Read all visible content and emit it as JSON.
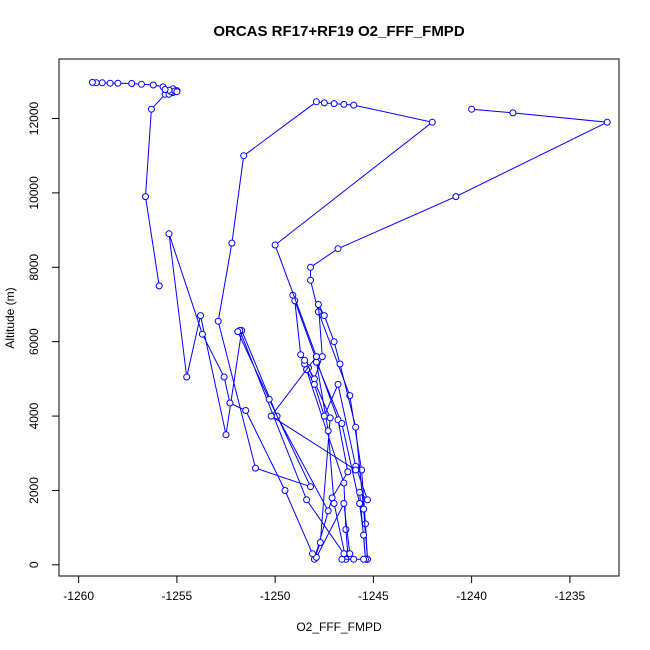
{
  "chart_data": {
    "type": "line",
    "title": "ORCAS RF17+RF19 O2_FFF_FMPD",
    "xlabel": "O2_FFF_FMPD",
    "ylabel": "Altitude (m)",
    "xlim": [
      -1261,
      -1232.5
    ],
    "ylim": [
      -300,
      13600
    ],
    "xticks": [
      -1260,
      -1255,
      -1250,
      -1245,
      -1240,
      -1235
    ],
    "yticks": [
      0,
      2000,
      4000,
      6000,
      8000,
      10000,
      12000
    ],
    "xtick_labels": [
      "-1260",
      "-1255",
      "-1250",
      "-1245",
      "-1240",
      "-1235"
    ],
    "ytick_labels": [
      "0",
      "2000",
      "4000",
      "6000",
      "8000",
      "10000",
      "12000"
    ],
    "series": [
      {
        "color": "#0000ff",
        "marker": "open-circle",
        "points": [
          [
            -1245.3,
            150
          ],
          [
            -1245.4,
            1100
          ],
          [
            -1245.6,
            2550
          ],
          [
            -1246.2,
            4550
          ],
          [
            -1247.8,
            6800
          ],
          [
            -1248.2,
            7650
          ],
          [
            -1248.2,
            8000
          ],
          [
            -1246.8,
            8500
          ],
          [
            -1240.8,
            9900
          ],
          [
            -1233.1,
            11900
          ],
          [
            -1237.9,
            12150
          ],
          [
            -1240.0,
            12250
          ]
        ]
      },
      {
        "color": "#0000ff",
        "marker": "open-circle",
        "points": [
          [
            -1245.3,
            150
          ],
          [
            -1245.5,
            1500
          ],
          [
            -1245.9,
            3700
          ],
          [
            -1246.7,
            5400
          ],
          [
            -1247.0,
            6000
          ],
          [
            -1247.5,
            6700
          ],
          [
            -1247.8,
            7000
          ],
          [
            -1247.6,
            5600
          ],
          [
            -1248.0,
            5000
          ],
          [
            -1248.7,
            5650
          ],
          [
            -1249.0,
            7100
          ],
          [
            -1249.1,
            7250
          ],
          [
            -1246.8,
            3900
          ],
          [
            -1246.3,
            2500
          ],
          [
            -1247.1,
            1800
          ],
          [
            -1248.0,
            150
          ],
          [
            -1247.7,
            600
          ],
          [
            -1247.2,
            3950
          ],
          [
            -1248.3,
            5300
          ],
          [
            -1248.5,
            5400
          ],
          [
            -1246.5,
            2200
          ],
          [
            -1246.4,
            950
          ],
          [
            -1246.3,
            300
          ],
          [
            -1246.4,
            150
          ],
          [
            -1247.0,
            1650
          ],
          [
            -1247.3,
            3600
          ],
          [
            -1247.9,
            5450
          ],
          [
            -1246.6,
            3800
          ],
          [
            -1245.7,
            1650
          ],
          [
            -1245.5,
            800
          ],
          [
            -1245.4,
            150
          ],
          [
            -1245.7,
            1950
          ],
          [
            -1245.3,
            1750
          ],
          [
            -1245.9,
            2650
          ],
          [
            -1246.8,
            4850
          ],
          [
            -1247.5,
            4000
          ],
          [
            -1248.0,
            4850
          ],
          [
            -1248.4,
            5250
          ],
          [
            -1248.5,
            5500
          ]
        ]
      },
      {
        "color": "#0000ff",
        "marker": "open-circle",
        "points": [
          [
            -1245.5,
            150
          ],
          [
            -1246.0,
            150
          ],
          [
            -1246.6,
            150
          ],
          [
            -1246.2,
            300
          ],
          [
            -1246.5,
            1650
          ],
          [
            -1247.9,
            200
          ],
          [
            -1248.1,
            300
          ],
          [
            -1249.5,
            2000
          ],
          [
            -1251.5,
            4150
          ],
          [
            -1252.3,
            4350
          ],
          [
            -1252.6,
            5050
          ],
          [
            -1253.7,
            6200
          ],
          [
            -1255.4,
            8900
          ],
          [
            -1254.5,
            5050
          ],
          [
            -1253.8,
            6700
          ],
          [
            -1252.5,
            3500
          ],
          [
            -1251.7,
            6300
          ],
          [
            -1249.9,
            4000
          ],
          [
            -1247.3,
            1450
          ]
        ]
      },
      {
        "color": "#0000ff",
        "marker": "open-circle",
        "points": [
          [
            -1246.5,
            300
          ],
          [
            -1248.4,
            1750
          ],
          [
            -1251.8,
            6300
          ],
          [
            -1251.9,
            6270
          ],
          [
            -1250.3,
            4450
          ],
          [
            -1248.2,
            2100
          ],
          [
            -1251.0,
            2600
          ],
          [
            -1252.9,
            6550
          ],
          [
            -1252.2,
            8650
          ],
          [
            -1251.6,
            11000
          ],
          [
            -1247.9,
            12450
          ],
          [
            -1247.5,
            12420
          ],
          [
            -1247.0,
            12400
          ],
          [
            -1246.5,
            12380
          ],
          [
            -1246.0,
            12360
          ],
          [
            -1242.0,
            11900
          ],
          [
            -1250.0,
            8600
          ],
          [
            -1247.9,
            5600
          ],
          [
            -1250.2,
            4000
          ],
          [
            -1245.9,
            2550
          ]
        ]
      },
      {
        "color": "#0000ff",
        "marker": "open-circle",
        "points": [
          [
            -1255.9,
            7500
          ],
          [
            -1256.6,
            9900
          ],
          [
            -1256.3,
            12250
          ],
          [
            -1255.6,
            12650
          ],
          [
            -1255.3,
            12700
          ],
          [
            -1255.0,
            12750
          ],
          [
            -1255.2,
            12800
          ],
          [
            -1255.7,
            12850
          ],
          [
            -1256.2,
            12900
          ],
          [
            -1256.8,
            12920
          ],
          [
            -1257.3,
            12940
          ],
          [
            -1258.0,
            12950
          ],
          [
            -1258.4,
            12950
          ],
          [
            -1258.8,
            12960
          ],
          [
            -1259.1,
            12960
          ],
          [
            -1259.3,
            12970
          ]
        ]
      },
      {
        "color": "#0000ff",
        "marker": "open-circle",
        "points": [
          [
            -1255.4,
            12650
          ],
          [
            -1255.2,
            12700
          ],
          [
            -1255.3,
            12720
          ],
          [
            -1255.1,
            12740
          ],
          [
            -1255.4,
            12760
          ],
          [
            -1255.6,
            12780
          ],
          [
            -1255.0,
            12720
          ]
        ]
      }
    ],
    "grid": false
  }
}
